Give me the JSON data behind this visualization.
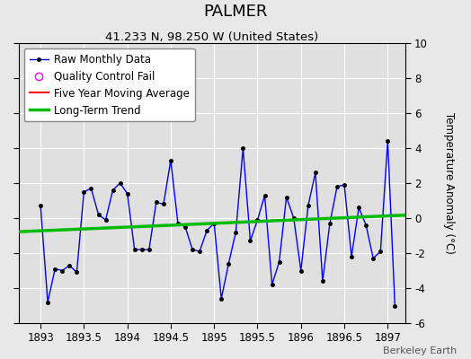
{
  "title": "PALMER",
  "subtitle": "41.233 N, 98.250 W (United States)",
  "ylabel": "Temperature Anomaly (°C)",
  "watermark": "Berkeley Earth",
  "ylim": [
    -6,
    10
  ],
  "xlim": [
    1892.75,
    1897.2
  ],
  "xticks": [
    1893,
    1893.5,
    1894,
    1894.5,
    1895,
    1895.5,
    1896,
    1896.5,
    1897
  ],
  "yticks": [
    -6,
    -4,
    -2,
    0,
    2,
    4,
    6,
    8,
    10
  ],
  "bg_color": "#e8e8e8",
  "plot_bg_color": "#e0e0e0",
  "raw_data_x": [
    1893.0,
    1893.083,
    1893.167,
    1893.25,
    1893.333,
    1893.417,
    1893.5,
    1893.583,
    1893.667,
    1893.75,
    1893.833,
    1893.917,
    1894.0,
    1894.083,
    1894.167,
    1894.25,
    1894.333,
    1894.417,
    1894.5,
    1894.583,
    1894.667,
    1894.75,
    1894.833,
    1894.917,
    1895.0,
    1895.083,
    1895.167,
    1895.25,
    1895.333,
    1895.417,
    1895.5,
    1895.583,
    1895.667,
    1895.75,
    1895.833,
    1895.917,
    1896.0,
    1896.083,
    1896.167,
    1896.25,
    1896.333,
    1896.417,
    1896.5,
    1896.583,
    1896.667,
    1896.75,
    1896.833,
    1896.917,
    1897.0,
    1897.083
  ],
  "raw_data_y": [
    0.7,
    -4.8,
    -2.9,
    -3.0,
    -2.7,
    -3.1,
    1.5,
    1.7,
    0.2,
    -0.1,
    1.6,
    2.0,
    1.4,
    -1.8,
    -1.8,
    -1.8,
    0.9,
    0.8,
    3.3,
    -0.3,
    -0.5,
    -1.8,
    -1.9,
    -0.7,
    -0.3,
    -4.6,
    -2.6,
    -0.8,
    4.0,
    -1.3,
    -0.1,
    1.3,
    -3.8,
    -2.5,
    1.2,
    0.0,
    -3.0,
    0.7,
    2.6,
    -3.6,
    -0.3,
    1.8,
    1.9,
    -2.2,
    0.6,
    -0.4,
    -2.3,
    -1.9,
    4.4,
    -5.0
  ],
  "trend_x": [
    1892.75,
    1897.2
  ],
  "trend_y": [
    -0.78,
    0.17
  ],
  "raw_color": "#0000ff",
  "trend_color": "#00bb00",
  "ma_color": "#ff0000",
  "marker_color": "#000000",
  "title_fontsize": 13,
  "subtitle_fontsize": 9.5,
  "legend_fontsize": 8.5,
  "tick_fontsize": 8.5,
  "ylabel_fontsize": 8.5
}
